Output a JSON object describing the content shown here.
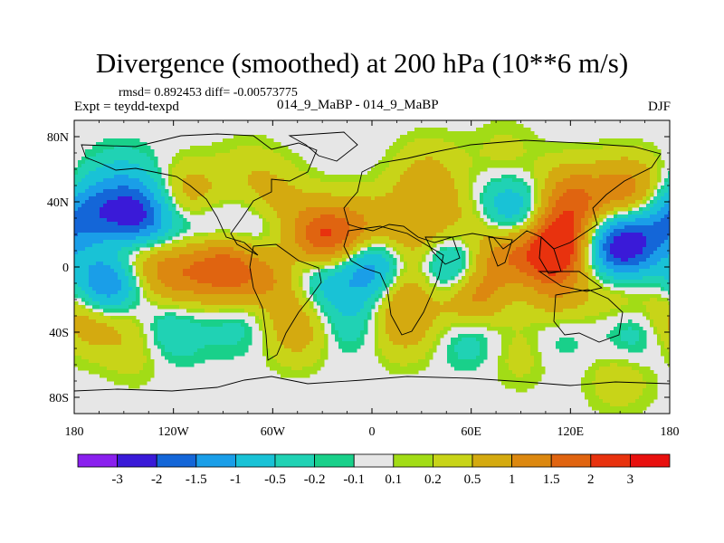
{
  "title": "Divergence (smoothed) at 200 hPa (10**6 m/s)",
  "stats": "rmsd= 0.892453 diff= -0.00573775",
  "expt": "Expt = teydd-texpd",
  "center_label": "014_9_MaBP - 014_9_MaBP",
  "season": "DJF",
  "map": {
    "projection": "cylindrical-equidistant",
    "lon_range": [
      -180,
      180
    ],
    "lat_range": [
      -90,
      90
    ],
    "x_ticks": [
      {
        "lon": -180,
        "label": "180"
      },
      {
        "lon": -120,
        "label": "120W"
      },
      {
        "lon": -60,
        "label": "60W"
      },
      {
        "lon": 0,
        "label": "0"
      },
      {
        "lon": 60,
        "label": "60E"
      },
      {
        "lon": 120,
        "label": "120E"
      },
      {
        "lon": 180,
        "label": "180"
      }
    ],
    "y_ticks": [
      {
        "lat": 80,
        "label": "80N"
      },
      {
        "lat": 40,
        "label": "40N"
      },
      {
        "lat": 0,
        "label": "0"
      },
      {
        "lat": -40,
        "label": "40S"
      },
      {
        "lat": -80,
        "label": "80S"
      }
    ],
    "background_color": "#e6e6e6",
    "fields": [
      {
        "lon": -142,
        "lat": 28,
        "v": -2.5
      },
      {
        "lon": -170,
        "lat": 33,
        "v": -1.2
      },
      {
        "lon": -105,
        "lat": 25,
        "v": -1.2
      },
      {
        "lon": -150,
        "lat": 52,
        "v": -0.5
      },
      {
        "lon": -70,
        "lat": 25,
        "v": -0.6
      },
      {
        "lon": -110,
        "lat": 40,
        "v": 1.2
      },
      {
        "lon": -60,
        "lat": 40,
        "v": 0.7
      },
      {
        "lon": -75,
        "lat": 58,
        "v": 0.3
      },
      {
        "lon": -145,
        "lat": 10,
        "v": 1.4
      },
      {
        "lon": -175,
        "lat": 12,
        "v": 0.6
      },
      {
        "lon": -100,
        "lat": 8,
        "v": 0.8
      },
      {
        "lon": -30,
        "lat": 15,
        "v": 2.6
      },
      {
        "lon": -5,
        "lat": 22,
        "v": 0.9
      },
      {
        "lon": 25,
        "lat": 18,
        "v": 0.8
      },
      {
        "lon": 60,
        "lat": 28,
        "v": 0.6
      },
      {
        "lon": 32,
        "lat": 45,
        "v": 0.6
      },
      {
        "lon": 35,
        "lat": 62,
        "v": 0.3
      },
      {
        "lon": 80,
        "lat": 68,
        "v": 0.3
      },
      {
        "lon": 120,
        "lat": 40,
        "v": 1.6
      },
      {
        "lon": 155,
        "lat": 45,
        "v": 1.4
      },
      {
        "lon": 110,
        "lat": 12,
        "v": 2.8
      },
      {
        "lon": 80,
        "lat": 5,
        "v": 1.6
      },
      {
        "lon": 150,
        "lat": 12,
        "v": -2.6
      },
      {
        "lon": 175,
        "lat": 22,
        "v": -1.1
      },
      {
        "lon": 92,
        "lat": 30,
        "v": -1.0
      },
      {
        "lon": 75,
        "lat": 36,
        "v": -0.6
      },
      {
        "lon": -35,
        "lat": 0,
        "v": -1.6
      },
      {
        "lon": 0,
        "lat": 0,
        "v": -1.8
      },
      {
        "lon": 50,
        "lat": -2,
        "v": -1.5
      },
      {
        "lon": 85,
        "lat": -6,
        "v": -0.6
      },
      {
        "lon": -160,
        "lat": -10,
        "v": -2.2
      },
      {
        "lon": -120,
        "lat": -5,
        "v": 1.1
      },
      {
        "lon": -85,
        "lat": -4,
        "v": 1.6
      },
      {
        "lon": -55,
        "lat": -8,
        "v": 1.0
      },
      {
        "lon": 18,
        "lat": -15,
        "v": 1.0
      },
      {
        "lon": 60,
        "lat": -18,
        "v": 1.8
      },
      {
        "lon": 110,
        "lat": -18,
        "v": 0.8
      },
      {
        "lon": 150,
        "lat": -15,
        "v": 0.7
      },
      {
        "lon": -175,
        "lat": -30,
        "v": 1.0
      },
      {
        "lon": -150,
        "lat": -30,
        "v": 0.5
      },
      {
        "lon": -125,
        "lat": -38,
        "v": -0.7
      },
      {
        "lon": -80,
        "lat": -30,
        "v": -0.5
      },
      {
        "lon": -45,
        "lat": -38,
        "v": 0.8
      },
      {
        "lon": -15,
        "lat": -32,
        "v": -0.5
      },
      {
        "lon": 20,
        "lat": -38,
        "v": 0.6
      },
      {
        "lon": 60,
        "lat": -38,
        "v": -0.7
      },
      {
        "lon": 110,
        "lat": -40,
        "v": -0.4
      },
      {
        "lon": 160,
        "lat": -38,
        "v": -0.6
      },
      {
        "lon": -140,
        "lat": -50,
        "v": 0.4
      },
      {
        "lon": 90,
        "lat": -52,
        "v": 0.4
      },
      {
        "lon": 150,
        "lat": -68,
        "v": 0.4
      }
    ]
  },
  "colorbar": {
    "colors": [
      "#8a20ee",
      "#3a1ad8",
      "#1466d8",
      "#1a9ee8",
      "#19c2d6",
      "#20d2b4",
      "#19d08a",
      "#e6e6e6",
      "#a2dc16",
      "#c8d418",
      "#d4aa10",
      "#dc8810",
      "#e06410",
      "#e8320e",
      "#e8100e"
    ],
    "labels": [
      "-3",
      "-2",
      "-1.5",
      "-1",
      "-0.5",
      "-0.2",
      "-0.1",
      "0.1",
      "0.2",
      "0.5",
      "1",
      "1.5",
      "2",
      "3"
    ],
    "levels": [
      -3,
      -2,
      -1.5,
      -1,
      -0.5,
      -0.2,
      -0.1,
      0.1,
      0.2,
      0.5,
      1,
      1.5,
      2,
      3
    ]
  }
}
